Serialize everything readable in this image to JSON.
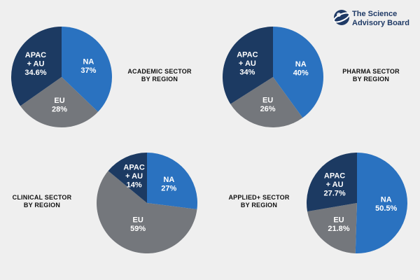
{
  "colors": {
    "NA": "#2a72c0",
    "EU": "#74777c",
    "APAC + AU": "#1c3a62",
    "background": "#efefef"
  },
  "brand": {
    "icon": "globe-swoosh-logo",
    "lines": [
      "The Science",
      "Advisory Board"
    ]
  },
  "chart_data": [
    {
      "type": "pie",
      "title_lines": [
        "ACADEMIC SECTOR",
        "BY REGION"
      ],
      "slices": [
        {
          "name": "NA",
          "value": 37,
          "label": "37%"
        },
        {
          "name": "EU",
          "value": 28,
          "label": "28%"
        },
        {
          "name": "APAC + AU",
          "value": 34.6,
          "label": "34.6%"
        }
      ]
    },
    {
      "type": "pie",
      "title_lines": [
        "PHARMA SECTOR",
        "BY REGION"
      ],
      "slices": [
        {
          "name": "NA",
          "value": 40,
          "label": "40%"
        },
        {
          "name": "EU",
          "value": 26,
          "label": "26%"
        },
        {
          "name": "APAC + AU",
          "value": 34,
          "label": "34%"
        }
      ]
    },
    {
      "type": "pie",
      "title_lines": [
        "CLINICAL SECTOR",
        "BY REGION"
      ],
      "slices": [
        {
          "name": "NA",
          "value": 27,
          "label": "27%"
        },
        {
          "name": "EU",
          "value": 59,
          "label": "59%"
        },
        {
          "name": "APAC + AU",
          "value": 14,
          "label": "14%"
        }
      ]
    },
    {
      "type": "pie",
      "title_lines": [
        "APPLIED+ SECTOR",
        "BY REGION"
      ],
      "slices": [
        {
          "name": "NA",
          "value": 50.5,
          "label": "50.5%"
        },
        {
          "name": "EU",
          "value": 21.8,
          "label": "21.8%"
        },
        {
          "name": "APAC + AU",
          "value": 27.7,
          "label": "27.7%"
        }
      ]
    }
  ]
}
